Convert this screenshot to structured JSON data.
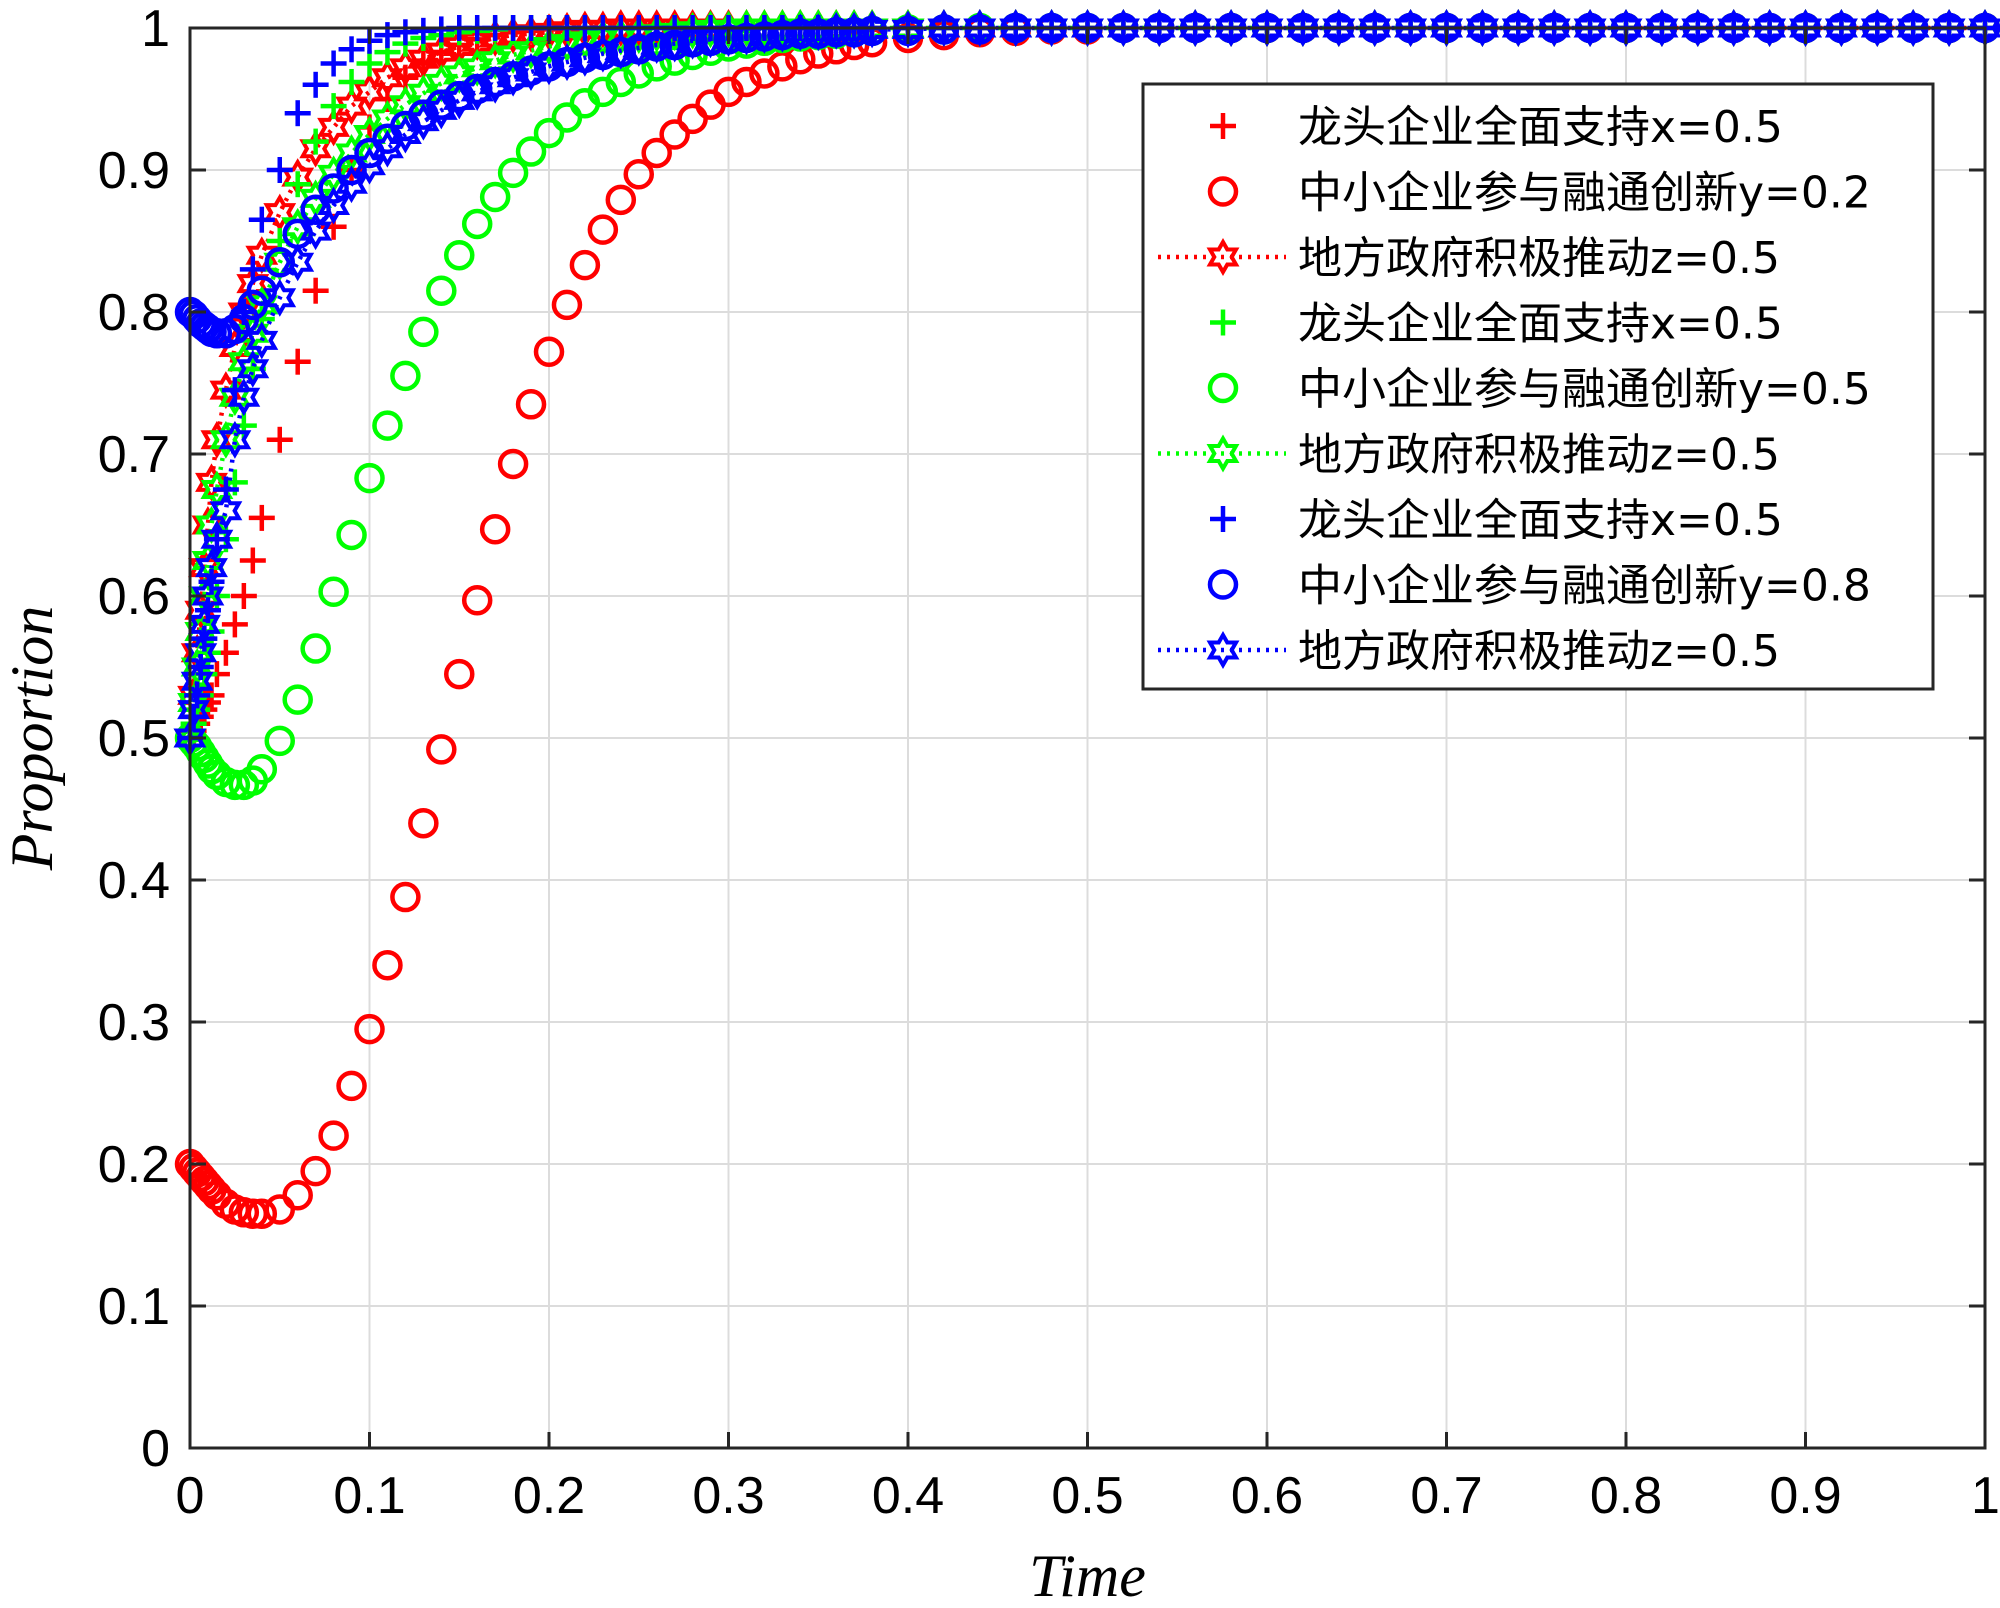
{
  "chart_data": {
    "type": "scatter",
    "title": "",
    "xlabel": "Time",
    "ylabel": "Proportion",
    "xlim": [
      0,
      1
    ],
    "ylim": [
      0,
      1
    ],
    "grid": true,
    "legend_position": "top-right",
    "x_ticks": [
      0,
      0.1,
      0.2,
      0.3,
      0.4,
      0.5,
      0.6,
      0.7,
      0.8,
      0.9,
      1
    ],
    "x_tick_labels": [
      "0",
      "0.1",
      "0.2",
      "0.3",
      "0.4",
      "0.5",
      "0.6",
      "0.7",
      "0.8",
      "0.9",
      "1"
    ],
    "y_ticks": [
      0,
      0.1,
      0.2,
      0.3,
      0.4,
      0.5,
      0.6,
      0.7,
      0.8,
      0.9,
      1
    ],
    "y_tick_labels": [
      "0",
      "0.1",
      "0.2",
      "0.3",
      "0.4",
      "0.5",
      "0.6",
      "0.7",
      "0.8",
      "0.9",
      "1"
    ],
    "x": [
      0,
      0.002,
      0.004,
      0.006,
      0.008,
      0.01,
      0.012,
      0.015,
      0.02,
      0.025,
      0.03,
      0.035,
      0.04,
      0.05,
      0.06,
      0.07,
      0.08,
      0.09,
      0.1,
      0.11,
      0.12,
      0.13,
      0.14,
      0.15,
      0.16,
      0.17,
      0.18,
      0.19,
      0.2,
      0.21,
      0.22,
      0.23,
      0.24,
      0.25,
      0.26,
      0.27,
      0.28,
      0.29,
      0.3,
      0.31,
      0.32,
      0.33,
      0.34,
      0.35,
      0.36,
      0.37,
      0.38,
      0.4,
      0.42,
      0.44,
      0.46,
      0.48,
      0.5,
      0.52,
      0.54,
      0.56,
      0.58,
      0.6,
      0.62,
      0.64,
      0.66,
      0.68,
      0.7,
      0.72,
      0.74,
      0.76,
      0.78,
      0.8,
      0.82,
      0.84,
      0.86,
      0.88,
      0.9,
      0.92,
      0.94,
      0.96,
      0.98,
      1.0
    ],
    "series": [
      {
        "name": "龙头企业全面支持x=0.5",
        "color": "#ff0000",
        "marker": "plus",
        "line": "none",
        "values": [
          0.5,
          0.505,
          0.51,
          0.515,
          0.52,
          0.525,
          0.53,
          0.545,
          0.56,
          0.58,
          0.6,
          0.625,
          0.655,
          0.71,
          0.765,
          0.815,
          0.86,
          0.9,
          0.93,
          0.95,
          0.965,
          0.975,
          0.983,
          0.988,
          0.992,
          0.995,
          0.997,
          0.998,
          0.999,
          0.999,
          1,
          1,
          1,
          1,
          1,
          1,
          1,
          1,
          1,
          1,
          1,
          1,
          1,
          1,
          1,
          1,
          1,
          1,
          1,
          1,
          1,
          1,
          1,
          1,
          1,
          1,
          1,
          1,
          1,
          1,
          1,
          1,
          1,
          1,
          1,
          1,
          1,
          1,
          1,
          1,
          1,
          1,
          1,
          1,
          1,
          1,
          1,
          1
        ]
      },
      {
        "name": "中小企业参与融通创新y=0.2",
        "color": "#ff0000",
        "marker": "circle",
        "line": "none",
        "values": [
          0.2,
          0.197,
          0.194,
          0.191,
          0.188,
          0.185,
          0.182,
          0.178,
          0.172,
          0.168,
          0.166,
          0.165,
          0.165,
          0.168,
          0.178,
          0.195,
          0.22,
          0.255,
          0.295,
          0.34,
          0.388,
          0.44,
          0.492,
          0.545,
          0.597,
          0.647,
          0.693,
          0.735,
          0.772,
          0.805,
          0.833,
          0.858,
          0.879,
          0.897,
          0.912,
          0.925,
          0.936,
          0.946,
          0.955,
          0.962,
          0.968,
          0.973,
          0.978,
          0.982,
          0.985,
          0.988,
          0.99,
          0.993,
          0.995,
          0.997,
          0.998,
          0.999,
          0.999,
          1,
          1,
          1,
          1,
          1,
          1,
          1,
          1,
          1,
          1,
          1,
          1,
          1,
          1,
          1,
          1,
          1,
          1,
          1,
          1,
          1,
          1,
          1,
          1,
          1
        ]
      },
      {
        "name": "地方政府积极推动z=0.5",
        "color": "#ff0000",
        "marker": "hexagram",
        "line": "dotted",
        "values": [
          0.5,
          0.53,
          0.56,
          0.59,
          0.62,
          0.65,
          0.68,
          0.71,
          0.745,
          0.775,
          0.8,
          0.82,
          0.84,
          0.87,
          0.895,
          0.915,
          0.93,
          0.945,
          0.955,
          0.965,
          0.972,
          0.978,
          0.983,
          0.987,
          0.99,
          0.993,
          0.995,
          0.996,
          0.997,
          0.998,
          0.999,
          0.999,
          1,
          1,
          1,
          1,
          1,
          1,
          1,
          1,
          1,
          1,
          1,
          1,
          1,
          1,
          1,
          1,
          1,
          1,
          1,
          1,
          1,
          1,
          1,
          1,
          1,
          1,
          1,
          1,
          1,
          1,
          1,
          1,
          1,
          1,
          1,
          1,
          1,
          1,
          1,
          1,
          1,
          1,
          1,
          1,
          1,
          1
        ]
      },
      {
        "name": "龙头企业全面支持x=0.5",
        "color": "#00ff00",
        "marker": "plus",
        "line": "none",
        "values": [
          0.5,
          0.51,
          0.52,
          0.53,
          0.545,
          0.56,
          0.575,
          0.6,
          0.64,
          0.68,
          0.72,
          0.76,
          0.795,
          0.85,
          0.89,
          0.92,
          0.945,
          0.962,
          0.975,
          0.983,
          0.989,
          0.993,
          0.995,
          0.997,
          0.998,
          0.999,
          1,
          1,
          1,
          1,
          1,
          1,
          1,
          1,
          1,
          1,
          1,
          1,
          1,
          1,
          1,
          1,
          1,
          1,
          1,
          1,
          1,
          1,
          1,
          1,
          1,
          1,
          1,
          1,
          1,
          1,
          1,
          1,
          1,
          1,
          1,
          1,
          1,
          1,
          1,
          1,
          1,
          1,
          1,
          1,
          1,
          1,
          1,
          1,
          1,
          1,
          1,
          1
        ]
      },
      {
        "name": "中小企业参与融通创新y=0.5",
        "color": "#00ff00",
        "marker": "circle",
        "line": "none",
        "values": [
          0.5,
          0.497,
          0.494,
          0.49,
          0.486,
          0.482,
          0.478,
          0.474,
          0.469,
          0.467,
          0.467,
          0.47,
          0.478,
          0.498,
          0.527,
          0.563,
          0.603,
          0.643,
          0.683,
          0.72,
          0.755,
          0.786,
          0.815,
          0.84,
          0.862,
          0.881,
          0.898,
          0.913,
          0.926,
          0.937,
          0.947,
          0.955,
          0.962,
          0.968,
          0.973,
          0.977,
          0.981,
          0.984,
          0.987,
          0.989,
          0.991,
          0.993,
          0.994,
          0.995,
          0.996,
          0.997,
          0.998,
          0.999,
          0.999,
          1,
          1,
          1,
          1,
          1,
          1,
          1,
          1,
          1,
          1,
          1,
          1,
          1,
          1,
          1,
          1,
          1,
          1,
          1,
          1,
          1,
          1,
          1,
          1,
          1,
          1,
          1,
          1,
          1
        ]
      },
      {
        "name": "地方政府积极推动z=0.5",
        "color": "#00ff00",
        "marker": "hexagram",
        "line": "dotted",
        "values": [
          0.5,
          0.525,
          0.55,
          0.575,
          0.6,
          0.625,
          0.65,
          0.675,
          0.71,
          0.74,
          0.765,
          0.785,
          0.805,
          0.835,
          0.86,
          0.88,
          0.897,
          0.912,
          0.925,
          0.936,
          0.946,
          0.954,
          0.961,
          0.967,
          0.972,
          0.977,
          0.981,
          0.984,
          0.987,
          0.989,
          0.991,
          0.993,
          0.994,
          0.995,
          0.996,
          0.997,
          0.998,
          0.999,
          0.999,
          1,
          1,
          1,
          1,
          1,
          1,
          1,
          1,
          1,
          1,
          1,
          1,
          1,
          1,
          1,
          1,
          1,
          1,
          1,
          1,
          1,
          1,
          1,
          1,
          1,
          1,
          1,
          1,
          1,
          1,
          1,
          1,
          1,
          1,
          1,
          1,
          1,
          1,
          1
        ]
      },
      {
        "name": "龙头企业全面支持x=0.5",
        "color": "#0000ff",
        "marker": "plus",
        "line": "none",
        "values": [
          0.5,
          0.515,
          0.53,
          0.55,
          0.57,
          0.59,
          0.61,
          0.64,
          0.675,
          0.745,
          0.8,
          0.83,
          0.865,
          0.9,
          0.94,
          0.96,
          0.975,
          0.985,
          0.991,
          0.995,
          0.997,
          0.998,
          0.999,
          1,
          1,
          1,
          1,
          1,
          1,
          1,
          1,
          1,
          1,
          1,
          1,
          1,
          1,
          1,
          1,
          1,
          1,
          1,
          1,
          1,
          1,
          1,
          1,
          1,
          1,
          1,
          1,
          1,
          1,
          1,
          1,
          1,
          1,
          1,
          1,
          1,
          1,
          1,
          1,
          1,
          1,
          1,
          1,
          1,
          1,
          1,
          1,
          1,
          1,
          1,
          1,
          1,
          1,
          1
        ]
      },
      {
        "name": "中小企业参与融通创新y=0.8",
        "color": "#0000ff",
        "marker": "circle",
        "line": "none",
        "values": [
          0.8,
          0.798,
          0.795,
          0.792,
          0.79,
          0.788,
          0.786,
          0.785,
          0.785,
          0.788,
          0.795,
          0.805,
          0.815,
          0.835,
          0.855,
          0.872,
          0.887,
          0.9,
          0.912,
          0.922,
          0.931,
          0.939,
          0.946,
          0.952,
          0.957,
          0.962,
          0.966,
          0.97,
          0.973,
          0.976,
          0.979,
          0.981,
          0.983,
          0.985,
          0.987,
          0.988,
          0.99,
          0.991,
          0.992,
          0.993,
          0.994,
          0.995,
          0.996,
          0.996,
          0.997,
          0.997,
          0.998,
          0.998,
          0.999,
          0.999,
          1,
          1,
          1,
          1,
          1,
          1,
          1,
          1,
          1,
          1,
          1,
          1,
          1,
          1,
          1,
          1,
          1,
          1,
          1,
          1,
          1,
          1,
          1,
          1,
          1,
          1,
          1,
          1
        ]
      },
      {
        "name": "地方政府积极推动z=0.5",
        "color": "#0000ff",
        "marker": "hexagram",
        "line": "dotted",
        "values": [
          0.5,
          0.52,
          0.54,
          0.56,
          0.58,
          0.6,
          0.62,
          0.64,
          0.66,
          0.71,
          0.74,
          0.76,
          0.78,
          0.81,
          0.835,
          0.857,
          0.875,
          0.89,
          0.903,
          0.915,
          0.925,
          0.934,
          0.942,
          0.949,
          0.955,
          0.96,
          0.965,
          0.969,
          0.973,
          0.976,
          0.979,
          0.982,
          0.984,
          0.986,
          0.988,
          0.989,
          0.991,
          0.992,
          0.993,
          0.994,
          0.995,
          0.996,
          0.997,
          0.997,
          0.998,
          0.998,
          0.999,
          0.999,
          1,
          1,
          1,
          1,
          1,
          1,
          1,
          1,
          1,
          1,
          1,
          1,
          1,
          1,
          1,
          1,
          1,
          1,
          1,
          1,
          1,
          1,
          1,
          1,
          1,
          1,
          1,
          1,
          1,
          1
        ]
      }
    ]
  }
}
